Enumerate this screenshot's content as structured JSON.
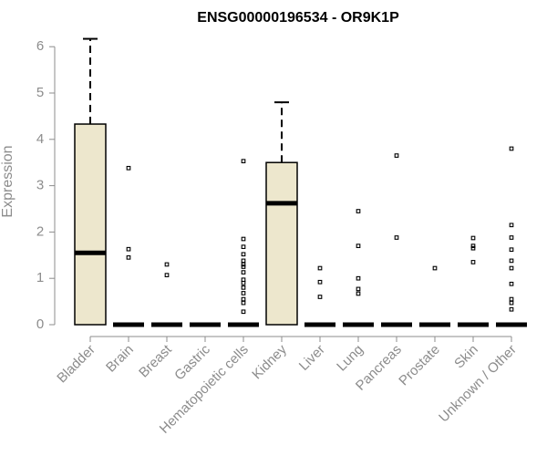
{
  "chart_data": {
    "type": "boxplot",
    "title": "ENSG00000196534 - OR9K1P",
    "ylabel": "Expression",
    "xlabel": "",
    "ylim": [
      0,
      6.2
    ],
    "yticks": [
      0,
      1,
      2,
      3,
      4,
      5,
      6
    ],
    "grid": false,
    "legend": "none",
    "box_fill": "#ede7cd",
    "box_stroke": "#000000",
    "axis_color": "#8c8c8c",
    "categories": [
      "Bladder",
      "Brain",
      "Breast",
      "Gastric",
      "Hematopoietic cells",
      "Kidney",
      "Liver",
      "Lung",
      "Pancreas",
      "Prostate",
      "Skin",
      "Unknown / Other"
    ],
    "boxes": [
      {
        "label": "Bladder",
        "min": 0,
        "q1": 0,
        "median": 1.55,
        "q3": 4.33,
        "max": 6.17,
        "outliers": []
      },
      {
        "label": "Brain",
        "min": 0,
        "q1": 0,
        "median": 0,
        "q3": 0,
        "max": 0,
        "outliers": [
          3.38,
          1.63,
          1.45
        ]
      },
      {
        "label": "Breast",
        "min": 0,
        "q1": 0,
        "median": 0,
        "q3": 0,
        "max": 0,
        "outliers": [
          1.3,
          1.07
        ]
      },
      {
        "label": "Gastric",
        "min": 0,
        "q1": 0,
        "median": 0,
        "q3": 0,
        "max": 0,
        "outliers": []
      },
      {
        "label": "Hematopoietic cells",
        "min": 0,
        "q1": 0,
        "median": 0,
        "q3": 0,
        "max": 0,
        "outliers": [
          3.53,
          1.85,
          1.68,
          1.52,
          1.38,
          1.3,
          1.25,
          1.13,
          0.97,
          0.9,
          0.8,
          0.68,
          0.55,
          0.47,
          0.28
        ]
      },
      {
        "label": "Kidney",
        "min": 0,
        "q1": 0,
        "median": 2.62,
        "q3": 3.5,
        "max": 4.8,
        "outliers": []
      },
      {
        "label": "Liver",
        "min": 0,
        "q1": 0,
        "median": 0,
        "q3": 0,
        "max": 0,
        "outliers": [
          1.22,
          0.92,
          0.6
        ]
      },
      {
        "label": "Lung",
        "min": 0,
        "q1": 0,
        "median": 0,
        "q3": 0,
        "max": 0,
        "outliers": [
          2.45,
          1.7,
          1.0,
          0.77,
          0.67
        ]
      },
      {
        "label": "Pancreas",
        "min": 0,
        "q1": 0,
        "median": 0,
        "q3": 0,
        "max": 0,
        "outliers": [
          3.65,
          1.88
        ]
      },
      {
        "label": "Prostate",
        "min": 0,
        "q1": 0,
        "median": 0,
        "q3": 0,
        "max": 0,
        "outliers": [
          1.22
        ]
      },
      {
        "label": "Skin",
        "min": 0,
        "q1": 0,
        "median": 0,
        "q3": 0,
        "max": 0,
        "outliers": [
          1.87,
          1.7,
          1.65,
          1.35
        ]
      },
      {
        "label": "Unknown / Other",
        "min": 0,
        "q1": 0,
        "median": 0,
        "q3": 0,
        "max": 0,
        "outliers": [
          3.8,
          2.15,
          1.88,
          1.62,
          1.38,
          1.22,
          0.88,
          0.55,
          0.47,
          0.33
        ]
      }
    ]
  }
}
